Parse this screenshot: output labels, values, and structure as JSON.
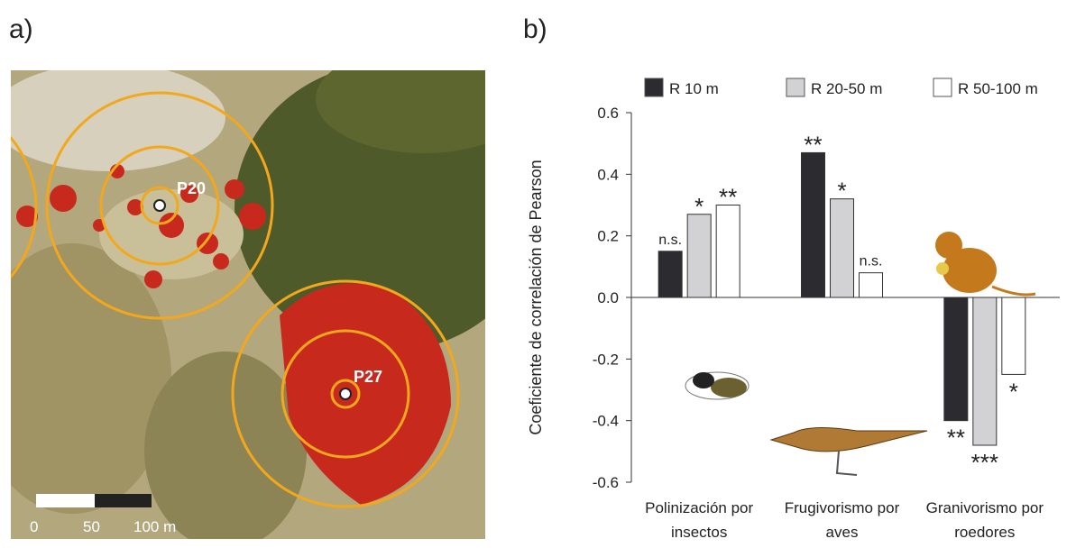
{
  "panels": {
    "a": "a)",
    "b": "b)"
  },
  "map": {
    "plots": [
      "P20",
      "P27"
    ],
    "scale_labels": [
      "0",
      "50",
      "100 m"
    ]
  },
  "chart_data": {
    "type": "bar",
    "ylabel": "Coeficiente de correlación de Pearson",
    "categories": [
      "Polinización por insectos",
      "Frugivorismo por aves",
      "Granivorismo por roedores"
    ],
    "series": [
      {
        "name": "R 10 m",
        "color": "#2b2b30",
        "values": [
          0.15,
          0.47,
          -0.4
        ],
        "significance": [
          "n.s.",
          "**",
          "**"
        ]
      },
      {
        "name": "R 20-50 m",
        "color": "#d2d2d4",
        "values": [
          0.27,
          0.32,
          -0.48
        ],
        "significance": [
          "*",
          "*",
          "***"
        ]
      },
      {
        "name": "R 50-100 m",
        "color": "#ffffff",
        "values": [
          0.3,
          0.08,
          -0.25
        ],
        "significance": [
          "**",
          "n.s.",
          "*"
        ]
      }
    ],
    "ylim": [
      -0.6,
      0.6
    ],
    "yticks": [
      0.6,
      0.4,
      0.2,
      {
        "value": 0,
        "label": "0.0"
      },
      -0.2,
      -0.4,
      -0.6
    ]
  }
}
